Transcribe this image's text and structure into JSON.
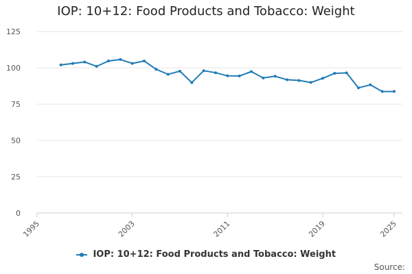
{
  "chart_data": {
    "type": "line",
    "title": "IOP: 10+12: Food Products and Tobacco: Weight",
    "xlabel": "",
    "ylabel": "",
    "xlim": [
      1995,
      2025
    ],
    "ylim": [
      0,
      125
    ],
    "x_ticks": [
      "1995",
      "2003",
      "2011",
      "2019",
      "2025"
    ],
    "y_ticks": [
      0,
      25,
      50,
      75,
      100,
      125
    ],
    "grid": true,
    "legend_position": "bottom",
    "color": "#1f7bb6",
    "series": [
      {
        "name": "IOP: 10+12: Food Products and Tobacco: Weight",
        "x": [
          1997,
          1998,
          1999,
          2000,
          2001,
          2002,
          2003,
          2004,
          2005,
          2006,
          2007,
          2008,
          2009,
          2010,
          2011,
          2012,
          2013,
          2014,
          2015,
          2016,
          2017,
          2018,
          2019,
          2020,
          2021,
          2022,
          2023,
          2024,
          2025
        ],
        "values": [
          102,
          103,
          104,
          101,
          104.7,
          105.7,
          103,
          104.7,
          99,
          95.5,
          97.7,
          89.8,
          98,
          96.6,
          94.5,
          94.4,
          97.4,
          93,
          94.2,
          91.8,
          91.3,
          89.9,
          92.8,
          96.2,
          96.5,
          86.2,
          88.3,
          83.7,
          83.7
        ]
      }
    ]
  },
  "source_label": "Source:"
}
